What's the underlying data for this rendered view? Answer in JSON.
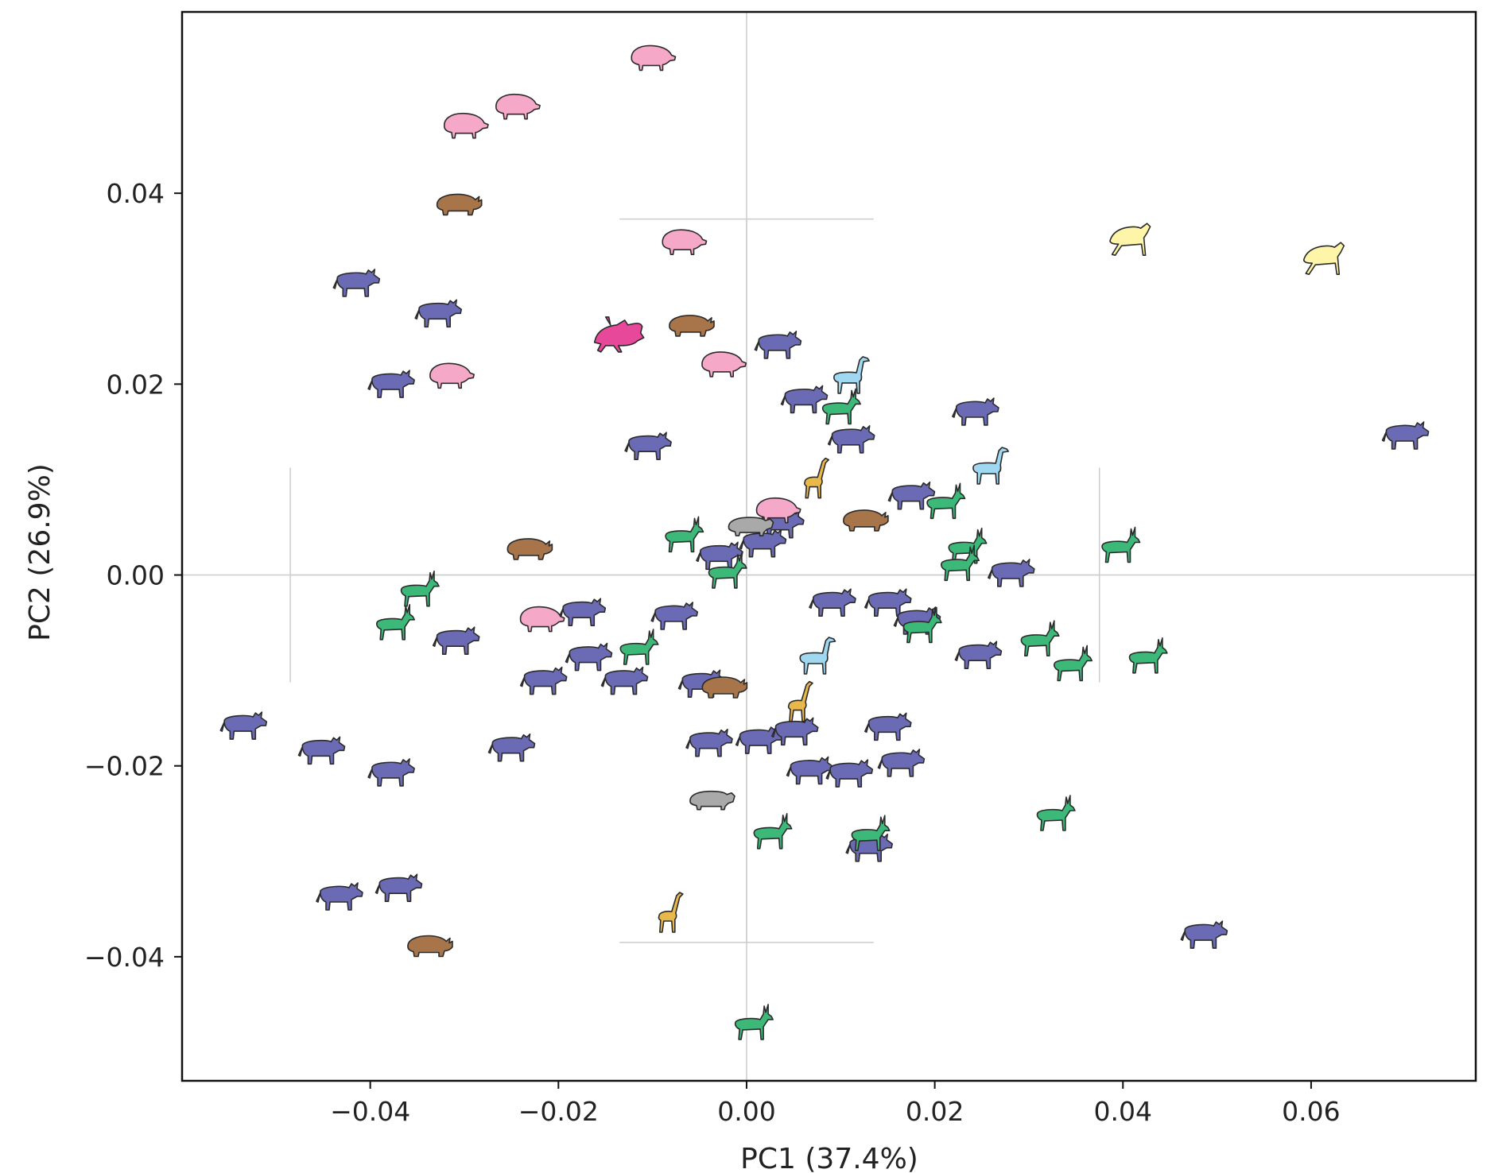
{
  "chart_data": {
    "type": "scatter",
    "title": "",
    "xlabel": "PC1 (37.4%)",
    "ylabel": "PC2 (26.9%)",
    "xlim": [
      -0.06,
      0.0775
    ],
    "ylim": [
      -0.053,
      0.059
    ],
    "xticks": [
      -0.04,
      -0.02,
      0.0,
      0.02,
      0.04,
      0.06
    ],
    "xtick_labels": [
      "−0.04",
      "−0.02",
      "0.00",
      "0.02",
      "0.04",
      "0.06"
    ],
    "yticks": [
      -0.04,
      -0.02,
      0.0,
      0.02,
      0.04
    ],
    "ytick_labels": [
      "−0.04",
      "−0.02",
      "0.00",
      "0.02",
      "0.04"
    ],
    "grid": false,
    "reference_lines": {
      "x": 0.0,
      "y": 0.0
    },
    "error_bars": [
      {
        "label": "PC1 spread",
        "center": [
          -0.0055,
          0.0
        ],
        "x_range": [
          -0.0485,
          0.0375
        ]
      },
      {
        "label": "PC2 spread",
        "center": [
          0.0,
          0.0
        ],
        "y_range": [
          -0.0385,
          0.0373
        ],
        "cap_half_width": 0.0135
      }
    ],
    "group_colors": {
      "bovid": "#6b6bb5",
      "cervid": "#3cb878",
      "suid": "#f5a8c8",
      "rhino_hippo_equid": "#a8744a",
      "giraffid": "#e8b84a",
      "camelid": "#9fd8f0",
      "gray": "#a9a9a9",
      "yellow": "#fff5a8",
      "magenta": "#e8489a"
    },
    "series": [
      {
        "name": "bovid",
        "silhouette": "bovid-icon",
        "color": "#6b6bb5",
        "points": [
          [
            -0.0413,
            0.0307
          ],
          [
            -0.0326,
            0.0275
          ],
          [
            -0.0376,
            0.0201
          ],
          [
            0.0035,
            0.0242
          ],
          [
            0.0063,
            0.0185
          ],
          [
            0.0113,
            0.0143
          ],
          [
            -0.0103,
            0.0136
          ],
          [
            0.0245,
            0.0172
          ],
          [
            0.0702,
            0.0147
          ],
          [
            0.0177,
            0.0084
          ],
          [
            0.0038,
            0.0054
          ],
          [
            0.0019,
            0.0034
          ],
          [
            -0.0027,
            0.0021
          ],
          [
            0.0283,
            0.0003
          ],
          [
            0.0093,
            -0.0028
          ],
          [
            0.0152,
            -0.0028
          ],
          [
            0.0183,
            -0.0047
          ],
          [
            -0.0173,
            -0.0038
          ],
          [
            -0.0075,
            -0.0042
          ],
          [
            -0.0307,
            -0.0068
          ],
          [
            -0.0166,
            -0.0085
          ],
          [
            -0.0128,
            -0.011
          ],
          [
            -0.0214,
            -0.011
          ],
          [
            -0.0046,
            -0.0113
          ],
          [
            0.0248,
            -0.0083
          ],
          [
            -0.0533,
            -0.0157
          ],
          [
            -0.045,
            -0.0183
          ],
          [
            -0.0376,
            -0.0206
          ],
          [
            -0.0248,
            -0.018
          ],
          [
            -0.0038,
            -0.0175
          ],
          [
            0.0015,
            -0.0172
          ],
          [
            0.0053,
            -0.0163
          ],
          [
            0.0152,
            -0.0158
          ],
          [
            0.0166,
            -0.0196
          ],
          [
            0.0069,
            -0.0204
          ],
          [
            0.0111,
            -0.0207
          ],
          [
            -0.0431,
            -0.0336
          ],
          [
            -0.0368,
            -0.0327
          ],
          [
            0.0132,
            -0.0285
          ],
          [
            0.0488,
            -0.0376
          ]
        ]
      },
      {
        "name": "cervid",
        "silhouette": "deer-icon",
        "color": "#3cb878",
        "points": [
          [
            0.0099,
            0.0175
          ],
          [
            0.021,
            0.0076
          ],
          [
            -0.0349,
            -0.0016
          ],
          [
            -0.0375,
            -0.0051
          ],
          [
            -0.0068,
            0.0041
          ],
          [
            -0.0022,
            0.0003
          ],
          [
            0.0233,
            0.0029
          ],
          [
            0.0225,
            0.0011
          ],
          [
            0.0396,
            0.003
          ],
          [
            -0.0116,
            -0.0077
          ],
          [
            0.0185,
            -0.0054
          ],
          [
            0.031,
            -0.0068
          ],
          [
            0.0345,
            -0.0094
          ],
          [
            0.0425,
            -0.0086
          ],
          [
            0.0327,
            -0.0251
          ],
          [
            0.0026,
            -0.027
          ],
          [
            0.013,
            -0.0272
          ],
          [
            0.0006,
            -0.047
          ]
        ]
      },
      {
        "name": "suid",
        "silhouette": "pig-icon",
        "color": "#f5a8c8",
        "points": [
          [
            -0.0101,
            0.0543
          ],
          [
            -0.0245,
            0.0492
          ],
          [
            -0.03,
            0.0472
          ],
          [
            -0.0068,
            0.035
          ],
          [
            -0.0026,
            0.0222
          ],
          [
            -0.0315,
            0.021
          ],
          [
            0.0032,
            0.0069
          ],
          [
            -0.0219,
            -0.0045
          ]
        ]
      },
      {
        "name": "rhino_hippo_equid",
        "silhouette": "rhino-icon",
        "color": "#a8744a",
        "points": [
          [
            -0.0307,
            0.0389
          ],
          [
            -0.006,
            0.0262
          ],
          [
            0.0125,
            0.0058
          ],
          [
            -0.0232,
            0.0028
          ],
          [
            -0.0025,
            -0.0117
          ],
          [
            -0.0338,
            -0.0388
          ]
        ]
      },
      {
        "name": "giraffid",
        "silhouette": "giraffe-icon",
        "color": "#e8b84a",
        "points": [
          [
            0.0072,
            0.0099
          ],
          [
            0.0055,
            -0.0135
          ],
          [
            -0.0083,
            -0.0356
          ]
        ]
      },
      {
        "name": "camelid",
        "silhouette": "llama-icon",
        "color": "#9fd8f0",
        "points": [
          [
            0.011,
            0.0207
          ],
          [
            0.0258,
            0.0112
          ],
          [
            0.0074,
            -0.0087
          ]
        ]
      },
      {
        "name": "gray",
        "silhouette": "hippo-icon",
        "color": "#a9a9a9",
        "points": [
          [
            0.0003,
            0.0052
          ],
          [
            -0.0038,
            -0.0235
          ]
        ]
      },
      {
        "name": "yellow",
        "silhouette": "grazer-icon",
        "color": "#fff5a8",
        "points": [
          [
            0.0407,
            0.035
          ],
          [
            0.0613,
            0.033
          ]
        ]
      },
      {
        "name": "magenta",
        "silhouette": "boar-icon",
        "color": "#e8489a",
        "points": [
          [
            -0.0138,
            0.0252
          ]
        ]
      }
    ]
  }
}
